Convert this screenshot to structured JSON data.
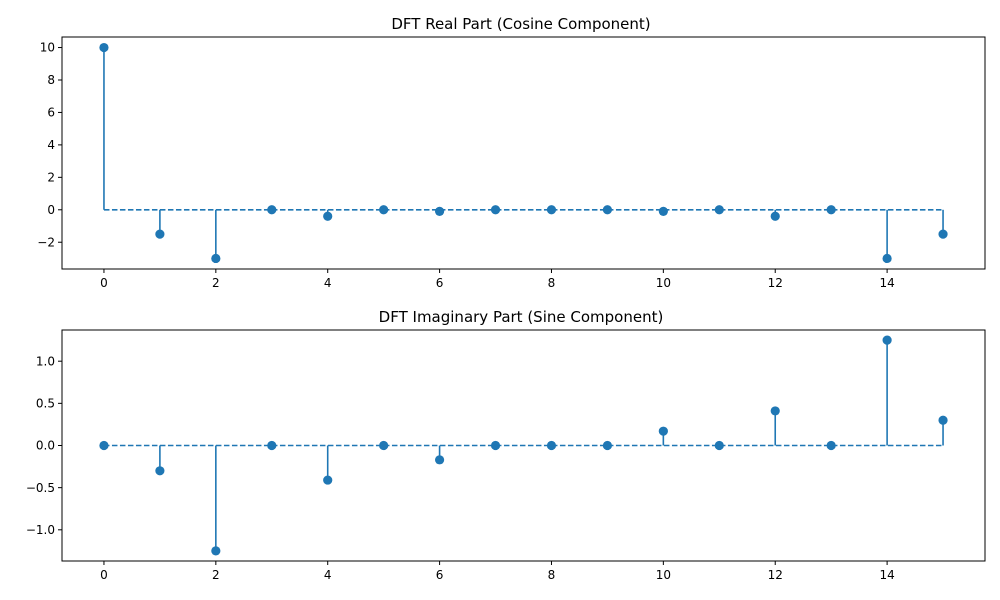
{
  "chart_data": [
    {
      "type": "stem",
      "title": "DFT Real Part (Cosine Component)",
      "xlabel": "",
      "ylabel": "",
      "x": [
        0,
        1,
        2,
        3,
        4,
        5,
        6,
        7,
        8,
        9,
        10,
        11,
        12,
        13,
        14,
        15
      ],
      "y": [
        10.0,
        -1.5,
        -3.0,
        0.0,
        -0.4,
        0.0,
        -0.1,
        0.0,
        0.0,
        0.0,
        -0.1,
        0.0,
        -0.4,
        0.0,
        -3.0,
        -1.5
      ],
      "baseline": 0,
      "xlim": [
        -0.75,
        15.75
      ],
      "ylim": [
        -3.65,
        10.65
      ],
      "xticks": [
        0,
        2,
        4,
        6,
        8,
        10,
        12,
        14
      ],
      "xtick_labels": [
        "0",
        "2",
        "4",
        "6",
        "8",
        "10",
        "12",
        "14"
      ],
      "yticks": [
        -2,
        0,
        2,
        4,
        6,
        8,
        10
      ],
      "ytick_labels": [
        "−2",
        "0",
        "2",
        "4",
        "6",
        "8",
        "10"
      ],
      "color": "#1f77b4",
      "grid": false
    },
    {
      "type": "stem",
      "title": "DFT Imaginary Part (Sine Component)",
      "xlabel": "",
      "ylabel": "",
      "x": [
        0,
        1,
        2,
        3,
        4,
        5,
        6,
        7,
        8,
        9,
        10,
        11,
        12,
        13,
        14,
        15
      ],
      "y": [
        0.0,
        -0.3,
        -1.25,
        0.0,
        -0.41,
        0.0,
        -0.17,
        0.0,
        0.0,
        0.0,
        0.17,
        0.0,
        0.41,
        0.0,
        1.25,
        0.3
      ],
      "baseline": 0,
      "xlim": [
        -0.75,
        15.75
      ],
      "ylim": [
        -1.37,
        1.37
      ],
      "xticks": [
        0,
        2,
        4,
        6,
        8,
        10,
        12,
        14
      ],
      "xtick_labels": [
        "0",
        "2",
        "4",
        "6",
        "8",
        "10",
        "12",
        "14"
      ],
      "yticks": [
        -1.0,
        -0.5,
        0.0,
        0.5,
        1.0
      ],
      "ytick_labels": [
        "−1.0",
        "−0.5",
        "0.0",
        "0.5",
        "1.0"
      ],
      "color": "#1f77b4",
      "grid": false
    }
  ]
}
